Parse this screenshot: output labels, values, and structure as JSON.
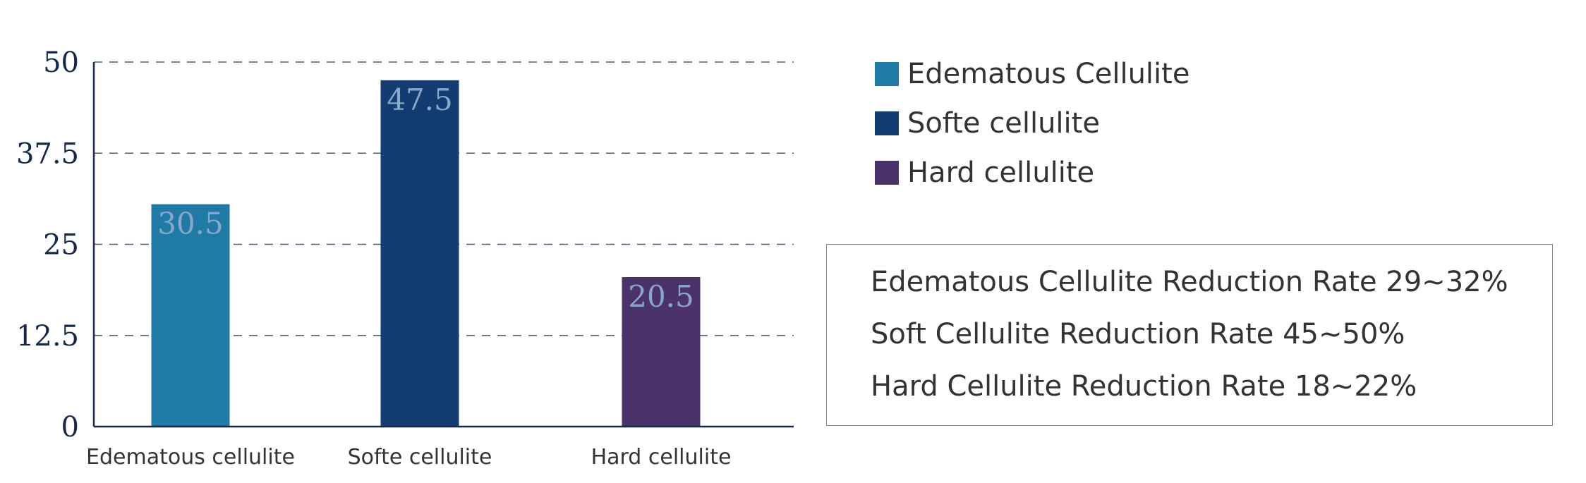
{
  "chart_data": {
    "type": "bar",
    "categories": [
      "Edematous cellulite",
      "Softe cellulite",
      "Hard cellulite"
    ],
    "values": [
      30.5,
      47.5,
      20.5
    ],
    "value_labels": [
      "30.5",
      "47.5",
      "20.5"
    ],
    "bar_colors": [
      "#1f7aa6",
      "#133c72",
      "#4c326a"
    ],
    "ylim": [
      0,
      50
    ],
    "yticks": [
      0,
      12.5,
      25,
      37.5,
      50
    ],
    "ytick_labels": [
      "0",
      "12.5",
      "25",
      "37.5",
      "50"
    ],
    "grid": true,
    "grid_style": "dashed",
    "legend": {
      "placement": "right",
      "entries": [
        {
          "label": "Edematous Cellulite",
          "color": "#1f7aa6"
        },
        {
          "label": "Softe cellulite",
          "color": "#133c72"
        },
        {
          "label": "Hard cellulite",
          "color": "#4c326a"
        }
      ]
    },
    "annotations": [
      "Edematous Cellulite Reduction Rate 29~32%",
      "Soft Cellulite Reduction Rate 45~50%",
      "Hard Cellulite Reduction Rate 18~22%"
    ],
    "axis_color": "#13294b",
    "value_label_color": "#8aa6c8"
  }
}
